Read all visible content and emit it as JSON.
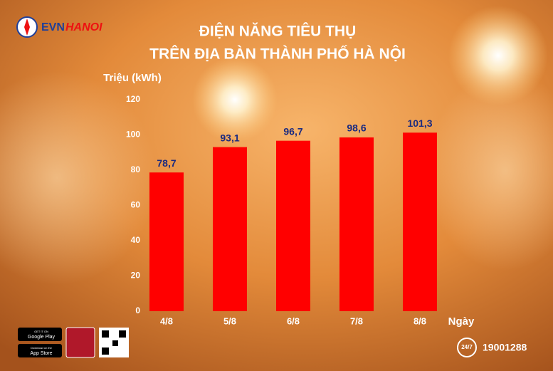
{
  "chart_data": {
    "type": "bar",
    "title": [
      "ĐIỆN NĂNG TIÊU THỤ",
      "TRÊN ĐỊA BÀN THÀNH PHỐ HÀ NỘI"
    ],
    "y_label": "Triệu (kWh)",
    "x_label": "Ngày",
    "categories": [
      "4/8",
      "5/8",
      "6/8",
      "7/8",
      "8/8"
    ],
    "values": [
      78.7,
      93.1,
      96.7,
      98.6,
      101.3
    ],
    "value_labels": [
      "78,7",
      "93,1",
      "96,7",
      "98,6",
      "101,3"
    ],
    "color": "#ff0000",
    "ylim": [
      0,
      120
    ],
    "yticks": [
      0,
      20,
      40,
      60,
      80,
      100,
      120
    ],
    "grid": false
  },
  "branding": {
    "logo_evn": "EVN",
    "logo_hanoi": "HANOI",
    "hotline": "19001288",
    "hotline_badge": "24/7",
    "google_small": "GET IT ON",
    "google": "Google Play",
    "apple_small": "Download on the",
    "apple": "App Store"
  }
}
